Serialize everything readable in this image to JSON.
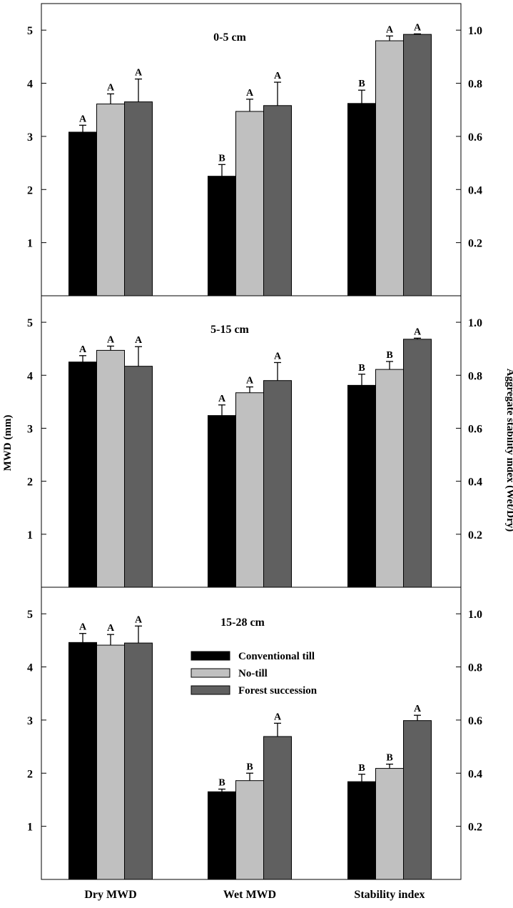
{
  "colors": {
    "conventional_till": "#000000",
    "no_till": "#c0c0c0",
    "forest_succession": "#606060"
  },
  "chart_data": {
    "type": "bar",
    "categories": [
      "Dry MWD",
      "Wet MWD",
      "Stability index"
    ],
    "ylabel_left": "MWD (mm)",
    "ylabel_right": "Aggregate stability index (Wet/Dry)",
    "left_axis": {
      "ylim": [
        0,
        5.5
      ],
      "ticks": [
        1,
        2,
        3,
        4,
        5
      ]
    },
    "right_axis": {
      "ylim": [
        0,
        1.1
      ],
      "ticks": [
        0.2,
        0.4,
        0.6,
        0.8,
        1.0
      ],
      "tick_labels": [
        "0.2",
        "0.4",
        "0.6",
        "0.8",
        "1.0"
      ]
    },
    "legend": {
      "placement": "bottom panel, center",
      "entries": [
        "Conventional till",
        "No-till",
        "Forest succession"
      ]
    },
    "panels": [
      {
        "title": "0-5 cm",
        "series": [
          {
            "name": "Conventional till",
            "values": [
              3.08,
              2.25,
              0.724
            ],
            "errors": [
              0.13,
              0.22,
              0.05
            ],
            "letters": [
              "A",
              "B",
              "B"
            ]
          },
          {
            "name": "No-till",
            "values": [
              3.61,
              3.47,
              0.96
            ],
            "errors": [
              0.19,
              0.23,
              0.018
            ],
            "letters": [
              "A",
              "A",
              "A"
            ]
          },
          {
            "name": "Forest succession",
            "values": [
              3.65,
              3.58,
              0.984
            ],
            "errors": [
              0.43,
              0.44,
              0.002
            ],
            "letters": [
              "A",
              "A",
              "A"
            ]
          }
        ]
      },
      {
        "title": "5-15 cm",
        "series": [
          {
            "name": "Conventional till",
            "values": [
              4.25,
              3.24,
              0.762
            ],
            "errors": [
              0.12,
              0.2,
              0.042
            ],
            "letters": [
              "A",
              "A",
              "B"
            ]
          },
          {
            "name": "No-till",
            "values": [
              4.47,
              3.67,
              0.822
            ],
            "errors": [
              0.08,
              0.11,
              0.03
            ],
            "letters": [
              "A",
              "A",
              "B"
            ]
          },
          {
            "name": "Forest succession",
            "values": [
              4.17,
              3.9,
              0.936
            ],
            "errors": [
              0.37,
              0.34,
              0.004
            ],
            "letters": [
              "A",
              "A",
              "A"
            ]
          }
        ]
      },
      {
        "title": "15-28 cm",
        "series": [
          {
            "name": "Conventional till",
            "values": [
              4.46,
              1.65,
              0.368
            ],
            "errors": [
              0.17,
              0.05,
              0.028
            ],
            "letters": [
              "A",
              "B",
              "B"
            ]
          },
          {
            "name": "No-till",
            "values": [
              4.41,
              1.86,
              0.418
            ],
            "errors": [
              0.2,
              0.14,
              0.016
            ],
            "letters": [
              "A",
              "B",
              "B"
            ]
          },
          {
            "name": "Forest succession",
            "values": [
              4.45,
              2.69,
              0.598
            ],
            "errors": [
              0.32,
              0.25,
              0.02
            ],
            "letters": [
              "A",
              "A",
              "A"
            ]
          }
        ]
      }
    ]
  }
}
